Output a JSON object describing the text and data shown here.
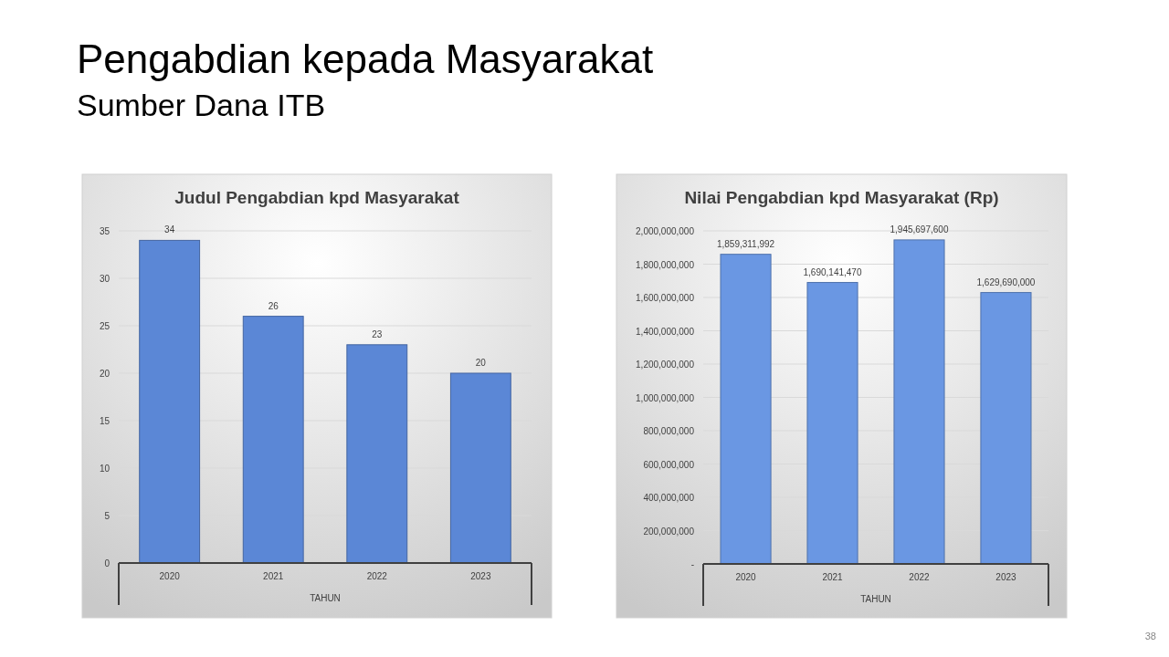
{
  "chart_data": [
    {
      "type": "bar",
      "title": "Judul Pengabdian kpd Masyarakat",
      "xlabel": "TAHUN",
      "categories": [
        "2020",
        "2021",
        "2022",
        "2023"
      ],
      "values": [
        34,
        26,
        23,
        20
      ],
      "color": "#5b87d6",
      "ylim": [
        0,
        35
      ],
      "yticks": [
        0,
        5,
        10,
        15,
        20,
        25,
        30,
        35
      ],
      "grid": true,
      "data_labels": true,
      "annotations": [
        "Pengabdian kepada Masyarakat",
        "Sumber Dana ITB"
      ]
    },
    {
      "type": "bar",
      "title": "Nilai Pengabdian kpd Masyarakat (Rp)",
      "xlabel": "TAHUN",
      "categories": [
        "2020",
        "2021",
        "2022",
        "2023"
      ],
      "values": [
        1859311992,
        1690141470,
        1945697600,
        1629690000
      ],
      "color": "#6a97e3",
      "ylim": [
        0,
        2000000000
      ],
      "yticks": [
        {
          "value": 0,
          "label": "-"
        },
        {
          "value": 200000000,
          "label": "200,000,000"
        },
        {
          "value": 400000000,
          "label": "400,000,000"
        },
        {
          "value": 600000000,
          "label": "600,000,000"
        },
        {
          "value": 800000000,
          "label": "800,000,000"
        },
        {
          "value": 1000000000,
          "label": "1,000,000,000"
        },
        {
          "value": 1200000000,
          "label": "1,200,000,000"
        },
        {
          "value": 1400000000,
          "label": "1,400,000,000"
        },
        {
          "value": 1600000000,
          "label": "1,600,000,000"
        },
        {
          "value": 1800000000,
          "label": "1,800,000,000"
        },
        {
          "value": 2000000000,
          "label": "2,000,000,000"
        }
      ],
      "grid": true,
      "value_labels": [
        "1,859,311,992",
        "1,690,141,470",
        "1,945,697,600",
        "1,629,690,000"
      ],
      "annotations": [
        "38"
      ]
    }
  ]
}
